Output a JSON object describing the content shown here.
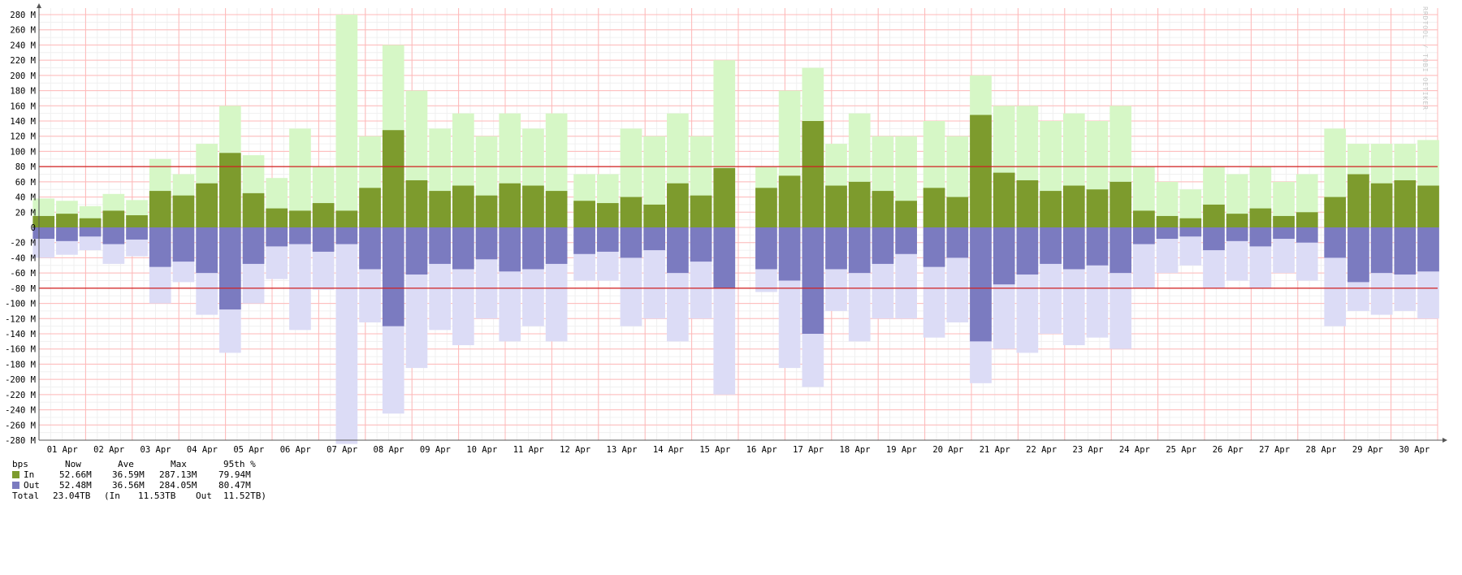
{
  "chart_data": {
    "type": "area",
    "units": "bps",
    "watermark": "RRDTOOL / TOBI OETIKER",
    "ylim": [
      -280,
      280
    ],
    "ytick_values": [
      280,
      260,
      240,
      220,
      200,
      180,
      160,
      140,
      120,
      100,
      80,
      60,
      40,
      20,
      0,
      -20,
      -40,
      -60,
      -80,
      -100,
      -120,
      -140,
      -160,
      -180,
      -200,
      -220,
      -240,
      -260,
      -280
    ],
    "ytick_labels": [
      "280 M",
      "260 M",
      "240 M",
      "220 M",
      "200 M",
      "180 M",
      "160 M",
      "140 M",
      "120 M",
      "100 M",
      "80 M",
      "60 M",
      "40 M",
      "20 M",
      "0",
      "-20 M",
      "-40 M",
      "-60 M",
      "-80 M",
      "-100 M",
      "-120 M",
      "-140 M",
      "-160 M",
      "-180 M",
      "-200 M",
      "-220 M",
      "-240 M",
      "-260 M",
      "-280 M"
    ],
    "xtick_labels": [
      "01 Apr",
      "02 Apr",
      "03 Apr",
      "04 Apr",
      "05 Apr",
      "06 Apr",
      "07 Apr",
      "08 Apr",
      "09 Apr",
      "10 Apr",
      "11 Apr",
      "12 Apr",
      "13 Apr",
      "14 Apr",
      "15 Apr",
      "16 Apr",
      "17 Apr",
      "18 Apr",
      "19 Apr",
      "20 Apr",
      "21 Apr",
      "22 Apr",
      "23 Apr",
      "24 Apr",
      "25 Apr",
      "26 Apr",
      "27 Apr",
      "28 Apr",
      "29 Apr",
      "30 Apr"
    ],
    "x_range_days": [
      0,
      30
    ],
    "threshold_lines": [
      80,
      -80
    ],
    "gaps_days": [
      [
        11.45,
        11.6
      ],
      [
        11.9,
        12.05
      ],
      [
        14.95,
        15.45
      ],
      [
        18.95,
        19.15
      ],
      [
        27.65,
        27.75
      ]
    ],
    "colors": {
      "in_average": "#7d9b2d",
      "in_max": "#d6f7c6",
      "out_average": "#7b7bc0",
      "out_max": "#dcdcf6",
      "threshold": "#d02020",
      "grid_major": "#ffb8b8",
      "grid_minor": "#f0f0f0",
      "axis": "#555555"
    },
    "series": [
      {
        "name": "In",
        "x_days": [
          0.1,
          0.6,
          1.1,
          1.6,
          2.1,
          2.6,
          3.1,
          3.6,
          4.1,
          4.6,
          5.1,
          5.6,
          6.1,
          6.6,
          7.1,
          7.6,
          8.1,
          8.6,
          9.1,
          9.6,
          10.1,
          10.6,
          11.1,
          11.7,
          12.2,
          12.7,
          13.2,
          13.7,
          14.2,
          14.7,
          15.6,
          16.1,
          16.6,
          17.1,
          17.6,
          18.1,
          18.6,
          19.2,
          19.7,
          20.2,
          20.7,
          21.2,
          21.7,
          22.2,
          22.7,
          23.2,
          23.7,
          24.2,
          24.7,
          25.2,
          25.7,
          26.2,
          26.7,
          27.2,
          27.8,
          28.3,
          28.8,
          29.3,
          29.8
        ],
        "average": [
          15,
          18,
          12,
          22,
          16,
          48,
          42,
          58,
          98,
          45,
          25,
          22,
          32,
          22,
          52,
          128,
          62,
          48,
          55,
          42,
          58,
          55,
          48,
          35,
          32,
          40,
          30,
          58,
          42,
          78,
          52,
          68,
          140,
          55,
          60,
          48,
          35,
          52,
          40,
          148,
          72,
          62,
          48,
          55,
          50,
          60,
          22,
          15,
          12,
          30,
          18,
          25,
          15,
          20,
          40,
          70,
          58,
          62,
          55
        ],
        "max": [
          38,
          35,
          28,
          44,
          36,
          90,
          70,
          110,
          160,
          95,
          65,
          130,
          80,
          280,
          120,
          240,
          180,
          130,
          150,
          120,
          150,
          130,
          150,
          70,
          70,
          130,
          120,
          150,
          120,
          220,
          80,
          180,
          210,
          110,
          150,
          120,
          120,
          140,
          120,
          200,
          160,
          160,
          140,
          150,
          140,
          160,
          80,
          60,
          50,
          80,
          70,
          80,
          60,
          70,
          130,
          110,
          110,
          110,
          115
        ]
      },
      {
        "name": "Out",
        "x_days": [
          0.1,
          0.6,
          1.1,
          1.6,
          2.1,
          2.6,
          3.1,
          3.6,
          4.1,
          4.6,
          5.1,
          5.6,
          6.1,
          6.6,
          7.1,
          7.6,
          8.1,
          8.6,
          9.1,
          9.6,
          10.1,
          10.6,
          11.1,
          11.7,
          12.2,
          12.7,
          13.2,
          13.7,
          14.2,
          14.7,
          15.6,
          16.1,
          16.6,
          17.1,
          17.6,
          18.1,
          18.6,
          19.2,
          19.7,
          20.2,
          20.7,
          21.2,
          21.7,
          22.2,
          22.7,
          23.2,
          23.7,
          24.2,
          24.7,
          25.2,
          25.7,
          26.2,
          26.7,
          27.2,
          27.8,
          28.3,
          28.8,
          29.3,
          29.8
        ],
        "average": [
          15,
          18,
          12,
          22,
          16,
          52,
          45,
          60,
          108,
          48,
          25,
          22,
          32,
          22,
          55,
          130,
          62,
          48,
          55,
          42,
          58,
          55,
          48,
          35,
          32,
          40,
          30,
          60,
          45,
          80,
          55,
          70,
          140,
          55,
          60,
          48,
          35,
          52,
          40,
          150,
          75,
          62,
          48,
          55,
          50,
          60,
          22,
          15,
          12,
          30,
          18,
          25,
          15,
          20,
          40,
          72,
          60,
          62,
          58
        ],
        "max": [
          40,
          36,
          30,
          48,
          38,
          100,
          72,
          115,
          165,
          100,
          68,
          135,
          82,
          285,
          125,
          245,
          185,
          135,
          155,
          120,
          150,
          130,
          150,
          70,
          70,
          130,
          120,
          150,
          120,
          220,
          85,
          185,
          210,
          110,
          150,
          120,
          120,
          145,
          125,
          205,
          160,
          165,
          140,
          155,
          145,
          160,
          80,
          60,
          50,
          80,
          70,
          80,
          60,
          70,
          130,
          110,
          115,
          110,
          120
        ]
      }
    ],
    "legend": {
      "header": [
        "bps",
        "Now",
        "Ave",
        "Max",
        "95th %"
      ],
      "rows": [
        {
          "label": "In",
          "now": "52.66M",
          "ave": "36.59M",
          "max": "287.13M",
          "p95": "79.94M",
          "color": "#7d9b2d"
        },
        {
          "label": "Out",
          "now": "52.48M",
          "ave": "36.56M",
          "max": "284.05M",
          "p95": "80.47M",
          "color": "#7b7bc0"
        }
      ],
      "total": {
        "label": "Total",
        "value": "23.04TB",
        "in_label": "(In",
        "in_value": "11.53TB",
        "out_label": "Out",
        "out_value": "11.52TB)"
      }
    }
  }
}
